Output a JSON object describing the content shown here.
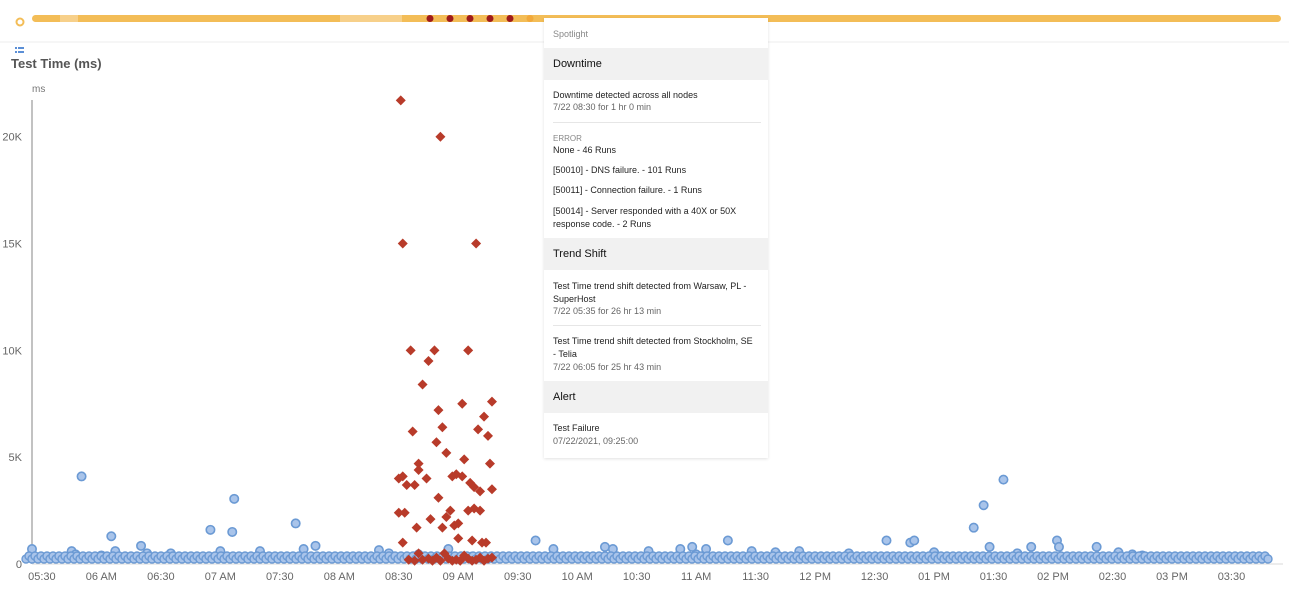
{
  "colors": {
    "timeline_bar": "#f3bd57",
    "timeline_bar_light": "#f7d08a",
    "timeline_marker": "#9e1b1b",
    "success": "#6b9ad4",
    "failure": "#b83b2a",
    "axis": "#999999",
    "text": "#555555"
  },
  "chart_title": "Test Time (ms)",
  "spotlight": {
    "label": "Spotlight",
    "downtime": {
      "heading": "Downtime",
      "text": "Downtime detected across all nodes",
      "sub": "7/22 08:30 for 1 hr 0 min",
      "error_label": "ERROR",
      "errors": [
        "None - 46 Runs",
        "[50010] - DNS failure. - 101 Runs",
        "[50011] - Connection failure. - 1 Runs",
        "[50014] - Server responded with a 40X or 50X response code. - 2 Runs"
      ]
    },
    "trend": {
      "heading": "Trend Shift",
      "items": [
        {
          "text": "Test Time trend shift detected from Warsaw, PL - SuperHost",
          "sub": "7/22 05:35 for 26 hr 13 min"
        },
        {
          "text": "Test Time trend shift detected from Stockholm, SE - Telia",
          "sub": "7/22 06:05 for 25 hr 43 min"
        }
      ]
    },
    "alert": {
      "heading": "Alert",
      "text": "Test Failure",
      "sub": "07/22/2021, 09:25:00"
    }
  },
  "chart_data": {
    "type": "scatter",
    "title": "Test Time (ms)",
    "ylabel": "ms",
    "xlabel": "",
    "ylim": [
      0,
      22000
    ],
    "xlim": [
      325,
      956
    ],
    "y_ticks": [
      0,
      5000,
      10000,
      15000,
      20000
    ],
    "y_tick_labels": [
      "0",
      "5K",
      "10K",
      "15K",
      "20K"
    ],
    "x_ticks": [
      330,
      360,
      390,
      420,
      450,
      480,
      510,
      540,
      570,
      600,
      630,
      660,
      690,
      720,
      750,
      780,
      810,
      840,
      870,
      900,
      930
    ],
    "x_tick_labels": [
      "05:30",
      "06 AM",
      "06:30",
      "07 AM",
      "07:30",
      "08 AM",
      "08:30",
      "09 AM",
      "09:30",
      "10 AM",
      "10:30",
      "11 AM",
      "11:30",
      "12 PM",
      "12:30",
      "01 PM",
      "01:30",
      "02 PM",
      "02:30",
      "03 PM",
      "03:30"
    ],
    "grid": false,
    "series": [
      {
        "points": [
          [
            325,
            700
          ],
          [
            342,
            350
          ],
          [
            345,
            600
          ],
          [
            347,
            450
          ],
          [
            350,
            4100
          ],
          [
            360,
            400
          ],
          [
            365,
            1300
          ],
          [
            367,
            600
          ],
          [
            380,
            850
          ],
          [
            383,
            500
          ],
          [
            395,
            500
          ],
          [
            415,
            1600
          ],
          [
            420,
            600
          ],
          [
            426,
            1500
          ],
          [
            427,
            3050
          ],
          [
            440,
            600
          ],
          [
            458,
            1900
          ],
          [
            462,
            700
          ],
          [
            468,
            850
          ],
          [
            500,
            650
          ],
          [
            505,
            500
          ],
          [
            520,
            450
          ],
          [
            535,
            700
          ],
          [
            547,
            350
          ],
          [
            579,
            1100
          ],
          [
            588,
            700
          ],
          [
            614,
            800
          ],
          [
            618,
            700
          ],
          [
            636,
            600
          ],
          [
            652,
            700
          ],
          [
            658,
            800
          ],
          [
            660,
            450
          ],
          [
            665,
            700
          ],
          [
            676,
            1100
          ],
          [
            688,
            600
          ],
          [
            700,
            550
          ],
          [
            712,
            600
          ],
          [
            737,
            500
          ],
          [
            756,
            1100
          ],
          [
            768,
            1000
          ],
          [
            770,
            1100
          ],
          [
            780,
            550
          ],
          [
            800,
            1700
          ],
          [
            805,
            2750
          ],
          [
            808,
            800
          ],
          [
            815,
            3950
          ],
          [
            822,
            500
          ],
          [
            829,
            800
          ],
          [
            842,
            1100
          ],
          [
            843,
            800
          ],
          [
            862,
            800
          ],
          [
            873,
            550
          ],
          [
            880,
            450
          ],
          [
            885,
            400
          ],
          [
            891,
            300
          ]
        ]
      },
      {
        "points": [
          [
            511,
            21700
          ],
          [
            512,
            15000
          ],
          [
            531,
            20000
          ],
          [
            549,
            15000
          ],
          [
            516,
            10000
          ],
          [
            528,
            10000
          ],
          [
            545,
            10000
          ],
          [
            557,
            7600
          ],
          [
            522,
            8400
          ],
          [
            525,
            9500
          ],
          [
            542,
            7500
          ],
          [
            530,
            7200
          ],
          [
            553,
            6900
          ],
          [
            517,
            6200
          ],
          [
            532,
            6400
          ],
          [
            550,
            6300
          ],
          [
            555,
            6000
          ],
          [
            529,
            5700
          ],
          [
            534,
            5200
          ],
          [
            543,
            4900
          ],
          [
            556,
            4700
          ],
          [
            520,
            4700
          ],
          [
            510,
            4000
          ],
          [
            512,
            4100
          ],
          [
            514,
            3700
          ],
          [
            518,
            3700
          ],
          [
            520,
            4400
          ],
          [
            524,
            4000
          ],
          [
            537,
            4100
          ],
          [
            539,
            4200
          ],
          [
            542,
            4100
          ],
          [
            546,
            3800
          ],
          [
            548,
            3600
          ],
          [
            551,
            3400
          ],
          [
            557,
            3500
          ],
          [
            530,
            3100
          ],
          [
            510,
            2400
          ],
          [
            513,
            2400
          ],
          [
            526,
            2100
          ],
          [
            534,
            2200
          ],
          [
            536,
            2500
          ],
          [
            540,
            1900
          ],
          [
            545,
            2500
          ],
          [
            548,
            2600
          ],
          [
            551,
            2500
          ],
          [
            538,
            1800
          ],
          [
            519,
            1700
          ],
          [
            532,
            1700
          ],
          [
            540,
            1200
          ],
          [
            547,
            1100
          ],
          [
            552,
            1000
          ],
          [
            554,
            1000
          ],
          [
            512,
            1000
          ],
          [
            520,
            500
          ],
          [
            515,
            200
          ],
          [
            518,
            150
          ],
          [
            522,
            200
          ],
          [
            525,
            250
          ],
          [
            527,
            150
          ],
          [
            529,
            300
          ],
          [
            531,
            150
          ],
          [
            533,
            500
          ],
          [
            535,
            250
          ],
          [
            537,
            150
          ],
          [
            539,
            200
          ],
          [
            541,
            150
          ],
          [
            543,
            400
          ],
          [
            545,
            250
          ],
          [
            547,
            150
          ],
          [
            549,
            200
          ],
          [
            551,
            300
          ],
          [
            553,
            150
          ],
          [
            555,
            250
          ],
          [
            557,
            300
          ]
        ]
      }
    ]
  }
}
